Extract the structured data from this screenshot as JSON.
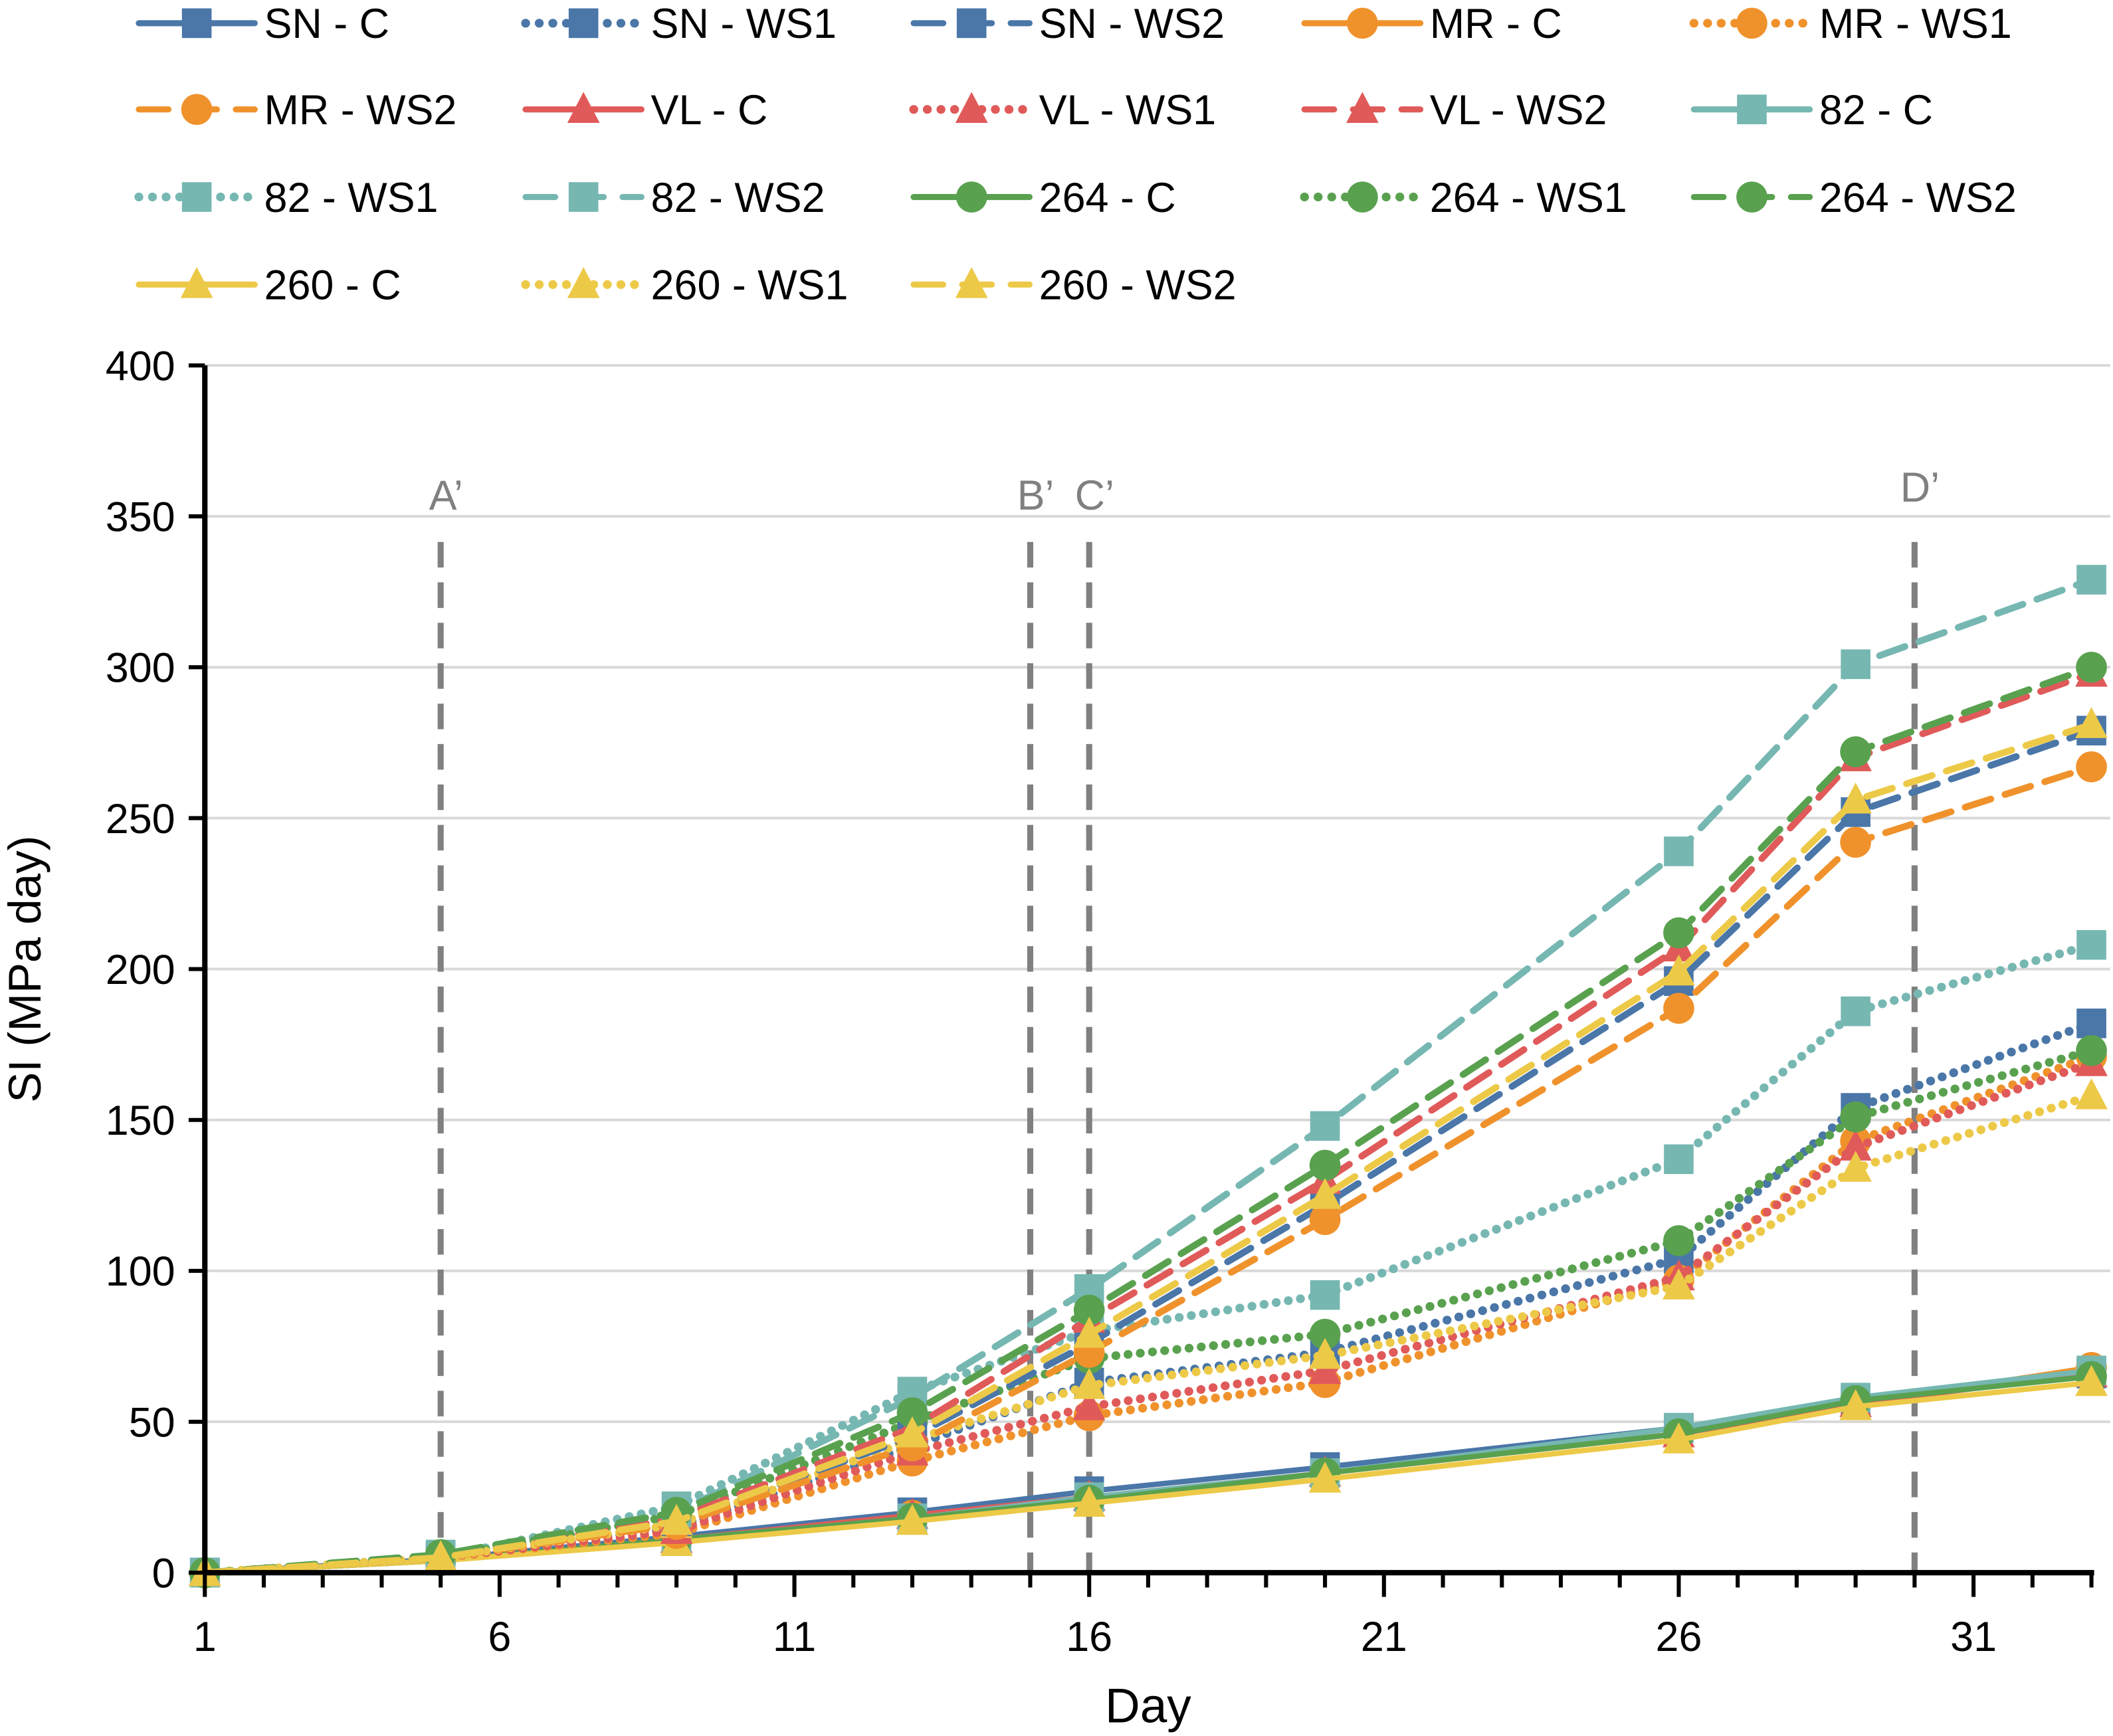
{
  "chart_data": {
    "type": "line",
    "title": "",
    "xlabel": "Day",
    "ylabel": "SI (MPa day)",
    "xlim": [
      1,
      33
    ],
    "ylim": [
      0,
      400
    ],
    "x_ticks": [
      "1",
      "6",
      "11",
      "16",
      "21",
      "26",
      "31"
    ],
    "x_tick_values": [
      1,
      6,
      11,
      16,
      21,
      26,
      31
    ],
    "y_ticks": [
      "0",
      "50",
      "100",
      "150",
      "200",
      "250",
      "300",
      "350",
      "400"
    ],
    "y_tick_values": [
      0,
      50,
      100,
      150,
      200,
      250,
      300,
      350,
      400
    ],
    "grid": "horizontal",
    "legend_placement": "top",
    "x": [
      1,
      5,
      9,
      13,
      16,
      20,
      26,
      29,
      33
    ],
    "reference_lines": [
      {
        "label": "A’",
        "x": 5
      },
      {
        "label": "B’",
        "x": 15
      },
      {
        "label": "C’",
        "x": 16
      },
      {
        "label": "D’",
        "x": 30
      }
    ],
    "series": [
      {
        "name": "SN - C",
        "color": "#4a76a8",
        "marker": "square",
        "style": "solid",
        "values": [
          0,
          4.5,
          12,
          20,
          27,
          35,
          48,
          57,
          66
        ]
      },
      {
        "name": "SN - WS1",
        "color": "#4a76a8",
        "marker": "square",
        "style": "dotted",
        "values": [
          0,
          5,
          15,
          42,
          63,
          73,
          104,
          154,
          182
        ]
      },
      {
        "name": "SN - WS2",
        "color": "#4a76a8",
        "marker": "square",
        "style": "dashed",
        "values": [
          0,
          5,
          17,
          45,
          76,
          122,
          196,
          252,
          279
        ]
      },
      {
        "name": "MR - C",
        "color": "#f0922c",
        "marker": "circle",
        "style": "solid",
        "values": [
          0,
          4,
          11,
          19,
          25,
          33,
          46,
          56,
          68
        ]
      },
      {
        "name": "MR - WS1",
        "color": "#f0922c",
        "marker": "circle",
        "style": "dotted",
        "values": [
          0,
          5,
          13,
          37,
          52,
          63,
          97,
          143,
          171
        ]
      },
      {
        "name": "MR - WS2",
        "color": "#f0922c",
        "marker": "circle",
        "style": "dashed",
        "values": [
          0,
          5,
          16,
          42,
          73,
          117,
          187,
          242,
          267
        ]
      },
      {
        "name": "VL - C",
        "color": "#e05a5a",
        "marker": "triangle",
        "style": "solid",
        "values": [
          0,
          4,
          11,
          19,
          25,
          33,
          46,
          56,
          66
        ]
      },
      {
        "name": "VL - WS1",
        "color": "#e05a5a",
        "marker": "triangle",
        "style": "dotted",
        "values": [
          0,
          5,
          14,
          40,
          55,
          67,
          98,
          141,
          169
        ]
      },
      {
        "name": "VL - WS2",
        "color": "#e05a5a",
        "marker": "triangle",
        "style": "dashed",
        "values": [
          0,
          5,
          18,
          48,
          84,
          130,
          207,
          270,
          298
        ]
      },
      {
        "name": "82 - C",
        "color": "#76b7b2",
        "marker": "square",
        "style": "solid",
        "values": [
          0,
          4,
          11,
          18,
          25,
          33,
          48,
          58,
          67
        ]
      },
      {
        "name": "82 - WS1",
        "color": "#76b7b2",
        "marker": "square",
        "style": "dotted",
        "values": [
          0,
          5,
          22,
          60,
          80,
          92,
          137,
          186,
          208
        ]
      },
      {
        "name": "82 - WS2",
        "color": "#76b7b2",
        "marker": "square",
        "style": "dashed",
        "values": [
          0,
          6,
          20,
          58,
          94,
          148,
          239,
          301,
          329
        ]
      },
      {
        "name": "264 - C",
        "color": "#59a14f",
        "marker": "circle",
        "style": "solid",
        "values": [
          0,
          4,
          11,
          18,
          24,
          33,
          46,
          57,
          65
        ]
      },
      {
        "name": "264 - WS1",
        "color": "#59a14f",
        "marker": "circle",
        "style": "dotted",
        "values": [
          0,
          5,
          19,
          50,
          71,
          79,
          110,
          151,
          173
        ]
      },
      {
        "name": "264 - WS2",
        "color": "#59a14f",
        "marker": "circle",
        "style": "dashed",
        "values": [
          0,
          6,
          20,
          53,
          87,
          135,
          212,
          272,
          300
        ]
      },
      {
        "name": "260 - C",
        "color": "#edc948",
        "marker": "triangle",
        "style": "solid",
        "values": [
          0,
          4,
          10,
          17,
          23,
          31,
          44,
          55,
          63
        ]
      },
      {
        "name": "260 - WS1",
        "color": "#edc948",
        "marker": "triangle",
        "style": "dotted",
        "values": [
          0,
          5,
          16,
          44,
          62,
          72,
          95,
          134,
          158
        ]
      },
      {
        "name": "260 - WS2",
        "color": "#edc948",
        "marker": "triangle",
        "style": "dashed",
        "values": [
          0,
          5,
          17,
          46,
          79,
          125,
          199,
          256,
          281
        ]
      }
    ]
  }
}
